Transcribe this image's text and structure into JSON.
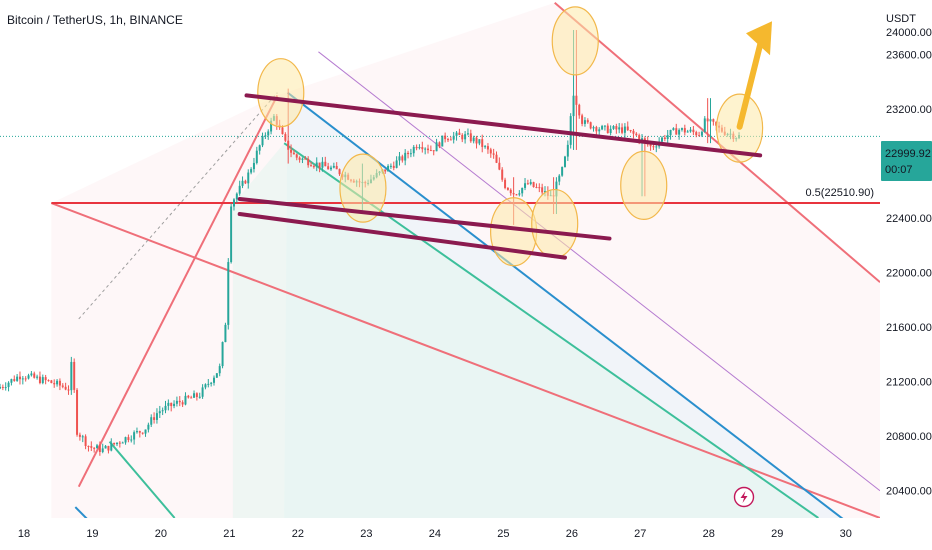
{
  "header": {
    "title": "Bitcoin / TetherUS, 1h, BINANCE"
  },
  "price_axis": {
    "currency": "USDT",
    "current_price": "22999.92",
    "countdown": "00:07"
  },
  "annotations": {
    "fib_label": "0.5(22510.90)"
  },
  "colors": {
    "up": "#26a69a",
    "down": "#ef5350",
    "channel": "#8b1a4f",
    "fib_line": "#e8343e",
    "pitchfork_red": "#ef6f79",
    "pitchfork_blue": "#2a8fcd",
    "pitchfork_teal": "#3dbf9b",
    "pitchfork_purple": "#b57bd0",
    "highlight_fill": "#fde9a8",
    "highlight_stroke": "#f2b84b",
    "arrow": "#f5b82e",
    "price_line": "#26a69a"
  },
  "chart_data": {
    "type": "candlestick",
    "title": "Bitcoin / TetherUS, 1h, BINANCE",
    "x_tick_labels": [
      "18",
      "19",
      "20",
      "21",
      "22",
      "23",
      "24",
      "25",
      "26",
      "27",
      "28",
      "29",
      "30"
    ],
    "y_tick_labels": [
      "20400.00",
      "20800.00",
      "21200.00",
      "21600.00",
      "22000.00",
      "22400.00",
      "23200.00",
      "23600.00"
    ],
    "y_unit": "USDT",
    "ylim": [
      20200,
      24000
    ],
    "xlim": [
      17.65,
      30.5
    ],
    "grid": false,
    "current_price": 22999.92,
    "price_path": [
      [
        17.65,
        21150
      ],
      [
        18.0,
        21250
      ],
      [
        18.4,
        21200
      ],
      [
        18.7,
        21150
      ],
      [
        18.75,
        21400
      ],
      [
        18.8,
        20850
      ],
      [
        19.0,
        20720
      ],
      [
        19.2,
        20700
      ],
      [
        19.5,
        20780
      ],
      [
        19.8,
        20850
      ],
      [
        20.0,
        20980
      ],
      [
        20.3,
        21050
      ],
      [
        20.6,
        21100
      ],
      [
        20.9,
        21300
      ],
      [
        21.0,
        21700
      ],
      [
        21.05,
        22500
      ],
      [
        21.3,
        22700
      ],
      [
        21.5,
        22950
      ],
      [
        21.7,
        23150
      ],
      [
        21.85,
        22950
      ],
      [
        22.0,
        22850
      ],
      [
        22.3,
        22800
      ],
      [
        22.6,
        22750
      ],
      [
        23.0,
        22650
      ],
      [
        23.3,
        22750
      ],
      [
        23.6,
        22850
      ],
      [
        23.8,
        22950
      ],
      [
        24.0,
        22900
      ],
      [
        24.2,
        23000
      ],
      [
        24.5,
        23000
      ],
      [
        24.7,
        22950
      ],
      [
        24.9,
        22850
      ],
      [
        25.05,
        22650
      ],
      [
        25.2,
        22580
      ],
      [
        25.4,
        22650
      ],
      [
        25.6,
        22600
      ],
      [
        25.75,
        22550
      ],
      [
        25.9,
        22750
      ],
      [
        26.0,
        22950
      ],
      [
        26.05,
        23350
      ],
      [
        26.2,
        23100
      ],
      [
        26.5,
        23050
      ],
      [
        26.8,
        23050
      ],
      [
        27.0,
        23000
      ],
      [
        27.2,
        22920
      ],
      [
        27.4,
        23000
      ],
      [
        27.6,
        23050
      ],
      [
        27.9,
        23020
      ],
      [
        28.0,
        23120
      ],
      [
        28.2,
        23050
      ],
      [
        28.45,
        23000
      ]
    ],
    "spikes": [
      {
        "x": 21.85,
        "high": 23350,
        "low": 22800
      },
      {
        "x": 22.95,
        "low": 22450,
        "high": 22800
      },
      {
        "x": 25.15,
        "low": 22350,
        "high": 22700
      },
      {
        "x": 25.75,
        "low": 22430,
        "high": 22700
      },
      {
        "x": 26.05,
        "high": 23780,
        "low": 22900
      },
      {
        "x": 27.05,
        "low": 22560,
        "high": 23000
      },
      {
        "x": 28.0,
        "high": 23280,
        "low": 22950
      }
    ],
    "fib_level": {
      "label": "0.5(22510.90)",
      "price": 22510.9,
      "x_start": 18.4
    },
    "channel_lines": [
      [
        [
          21.25,
          23300
        ],
        [
          28.75,
          22860
        ]
      ],
      [
        [
          21.15,
          22540
        ],
        [
          26.55,
          22250
        ]
      ],
      [
        [
          21.15,
          22430
        ],
        [
          25.9,
          22110
        ]
      ]
    ],
    "pitchfork": {
      "red_lines": [
        [
          [
            18.4,
            22510
          ],
          [
            30.5,
            20200
          ]
        ],
        [
          [
            25.75,
            23980
          ],
          [
            30.5,
            21930
          ]
        ],
        [
          [
            18.8,
            20430
          ],
          [
            21.7,
            23300
          ]
        ]
      ],
      "blue_lines": [
        [
          [
            18.75,
            20280
          ],
          [
            19.5,
            19900
          ]
        ],
        [
          [
            21.85,
            23320
          ],
          [
            30.2,
            20100
          ]
        ]
      ],
      "teal_lines": [
        [
          [
            19.25,
            20760
          ],
          [
            20.2,
            20200
          ]
        ],
        [
          [
            21.8,
            22950
          ],
          [
            29.6,
            20200
          ]
        ]
      ],
      "purple_line": [
        [
          22.3,
          23620
        ],
        [
          30.5,
          20400
        ]
      ],
      "dashed_line": [
        [
          18.8,
          21660
        ],
        [
          21.7,
          23320
        ]
      ]
    },
    "highlight_circles": [
      {
        "x": 21.75,
        "price": 23320
      },
      {
        "x": 22.95,
        "price": 22620
      },
      {
        "x": 25.15,
        "price": 22300
      },
      {
        "x": 25.75,
        "price": 22360
      },
      {
        "x": 26.05,
        "price": 23700
      },
      {
        "x": 27.05,
        "price": 22640
      },
      {
        "x": 28.45,
        "price": 23060
      }
    ],
    "arrow": {
      "from": [
        28.45,
        23070
      ],
      "to": [
        28.85,
        23800
      ]
    }
  }
}
